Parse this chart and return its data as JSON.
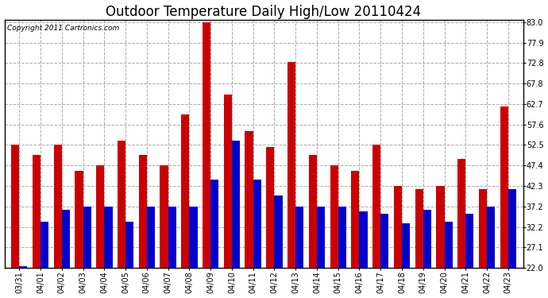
{
  "title": "Outdoor Temperature Daily High/Low 20110424",
  "copyright": "Copyright 2011 Cartronics.com",
  "dates": [
    "03/31",
    "04/01",
    "04/02",
    "04/03",
    "04/04",
    "04/05",
    "04/06",
    "04/07",
    "04/08",
    "04/09",
    "04/10",
    "04/11",
    "04/12",
    "04/13",
    "04/14",
    "04/15",
    "04/16",
    "04/17",
    "04/18",
    "04/19",
    "04/20",
    "04/21",
    "04/22",
    "04/23"
  ],
  "highs": [
    52.5,
    50.0,
    52.5,
    46.0,
    47.4,
    53.5,
    50.0,
    47.4,
    60.0,
    83.0,
    65.0,
    56.0,
    52.0,
    73.0,
    50.0,
    47.4,
    46.0,
    52.5,
    42.3,
    41.5,
    42.3,
    49.0,
    41.5,
    62.0
  ],
  "lows": [
    22.5,
    33.5,
    36.5,
    37.2,
    37.2,
    33.5,
    37.2,
    37.2,
    37.2,
    44.0,
    53.5,
    44.0,
    40.0,
    37.2,
    37.2,
    37.2,
    36.0,
    35.5,
    33.0,
    36.5,
    33.5,
    35.5,
    37.2,
    41.5
  ],
  "high_color": "#cc0000",
  "low_color": "#0000cc",
  "bg_color": "#ffffff",
  "plot_bg_color": "#ffffff",
  "grid_color": "#aaaaaa",
  "yticks": [
    22.0,
    27.1,
    32.2,
    37.2,
    42.3,
    47.4,
    52.5,
    57.6,
    62.7,
    67.8,
    72.8,
    77.9,
    83.0
  ],
  "ymin": 22.0,
  "ymax": 83.0,
  "bar_width": 0.38,
  "title_fontsize": 12,
  "tick_fontsize": 7,
  "copyright_fontsize": 6.5
}
